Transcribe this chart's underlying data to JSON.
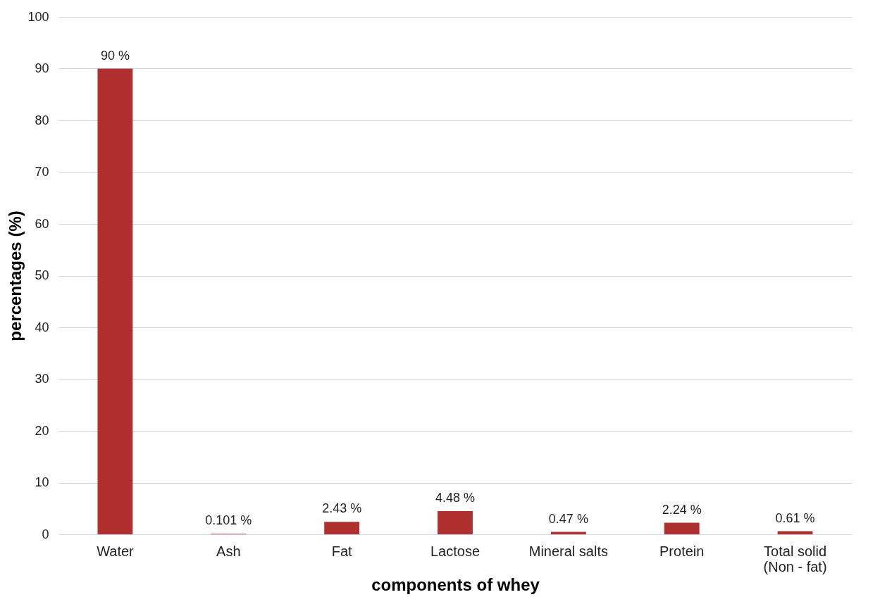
{
  "chart_data": {
    "type": "bar",
    "xlabel": "components of whey",
    "ylabel": "percentages  (%)",
    "categories": [
      "Water",
      "Ash",
      "Fat",
      "Lactose",
      "Mineral salts",
      "Protein",
      "Total solid\n(Non - fat)"
    ],
    "values": [
      90,
      0.101,
      2.43,
      4.48,
      0.47,
      2.24,
      0.61
    ],
    "value_labels": [
      "90 %",
      "0.101 %",
      "2.43 %",
      "4.48 %",
      "0.47 %",
      "2.24 %",
      "0.61 %"
    ],
    "color": "#b03030",
    "ylim": [
      0,
      100
    ],
    "yticks": [
      0,
      10,
      20,
      30,
      40,
      50,
      60,
      70,
      80,
      90,
      100
    ],
    "grid": "y"
  }
}
